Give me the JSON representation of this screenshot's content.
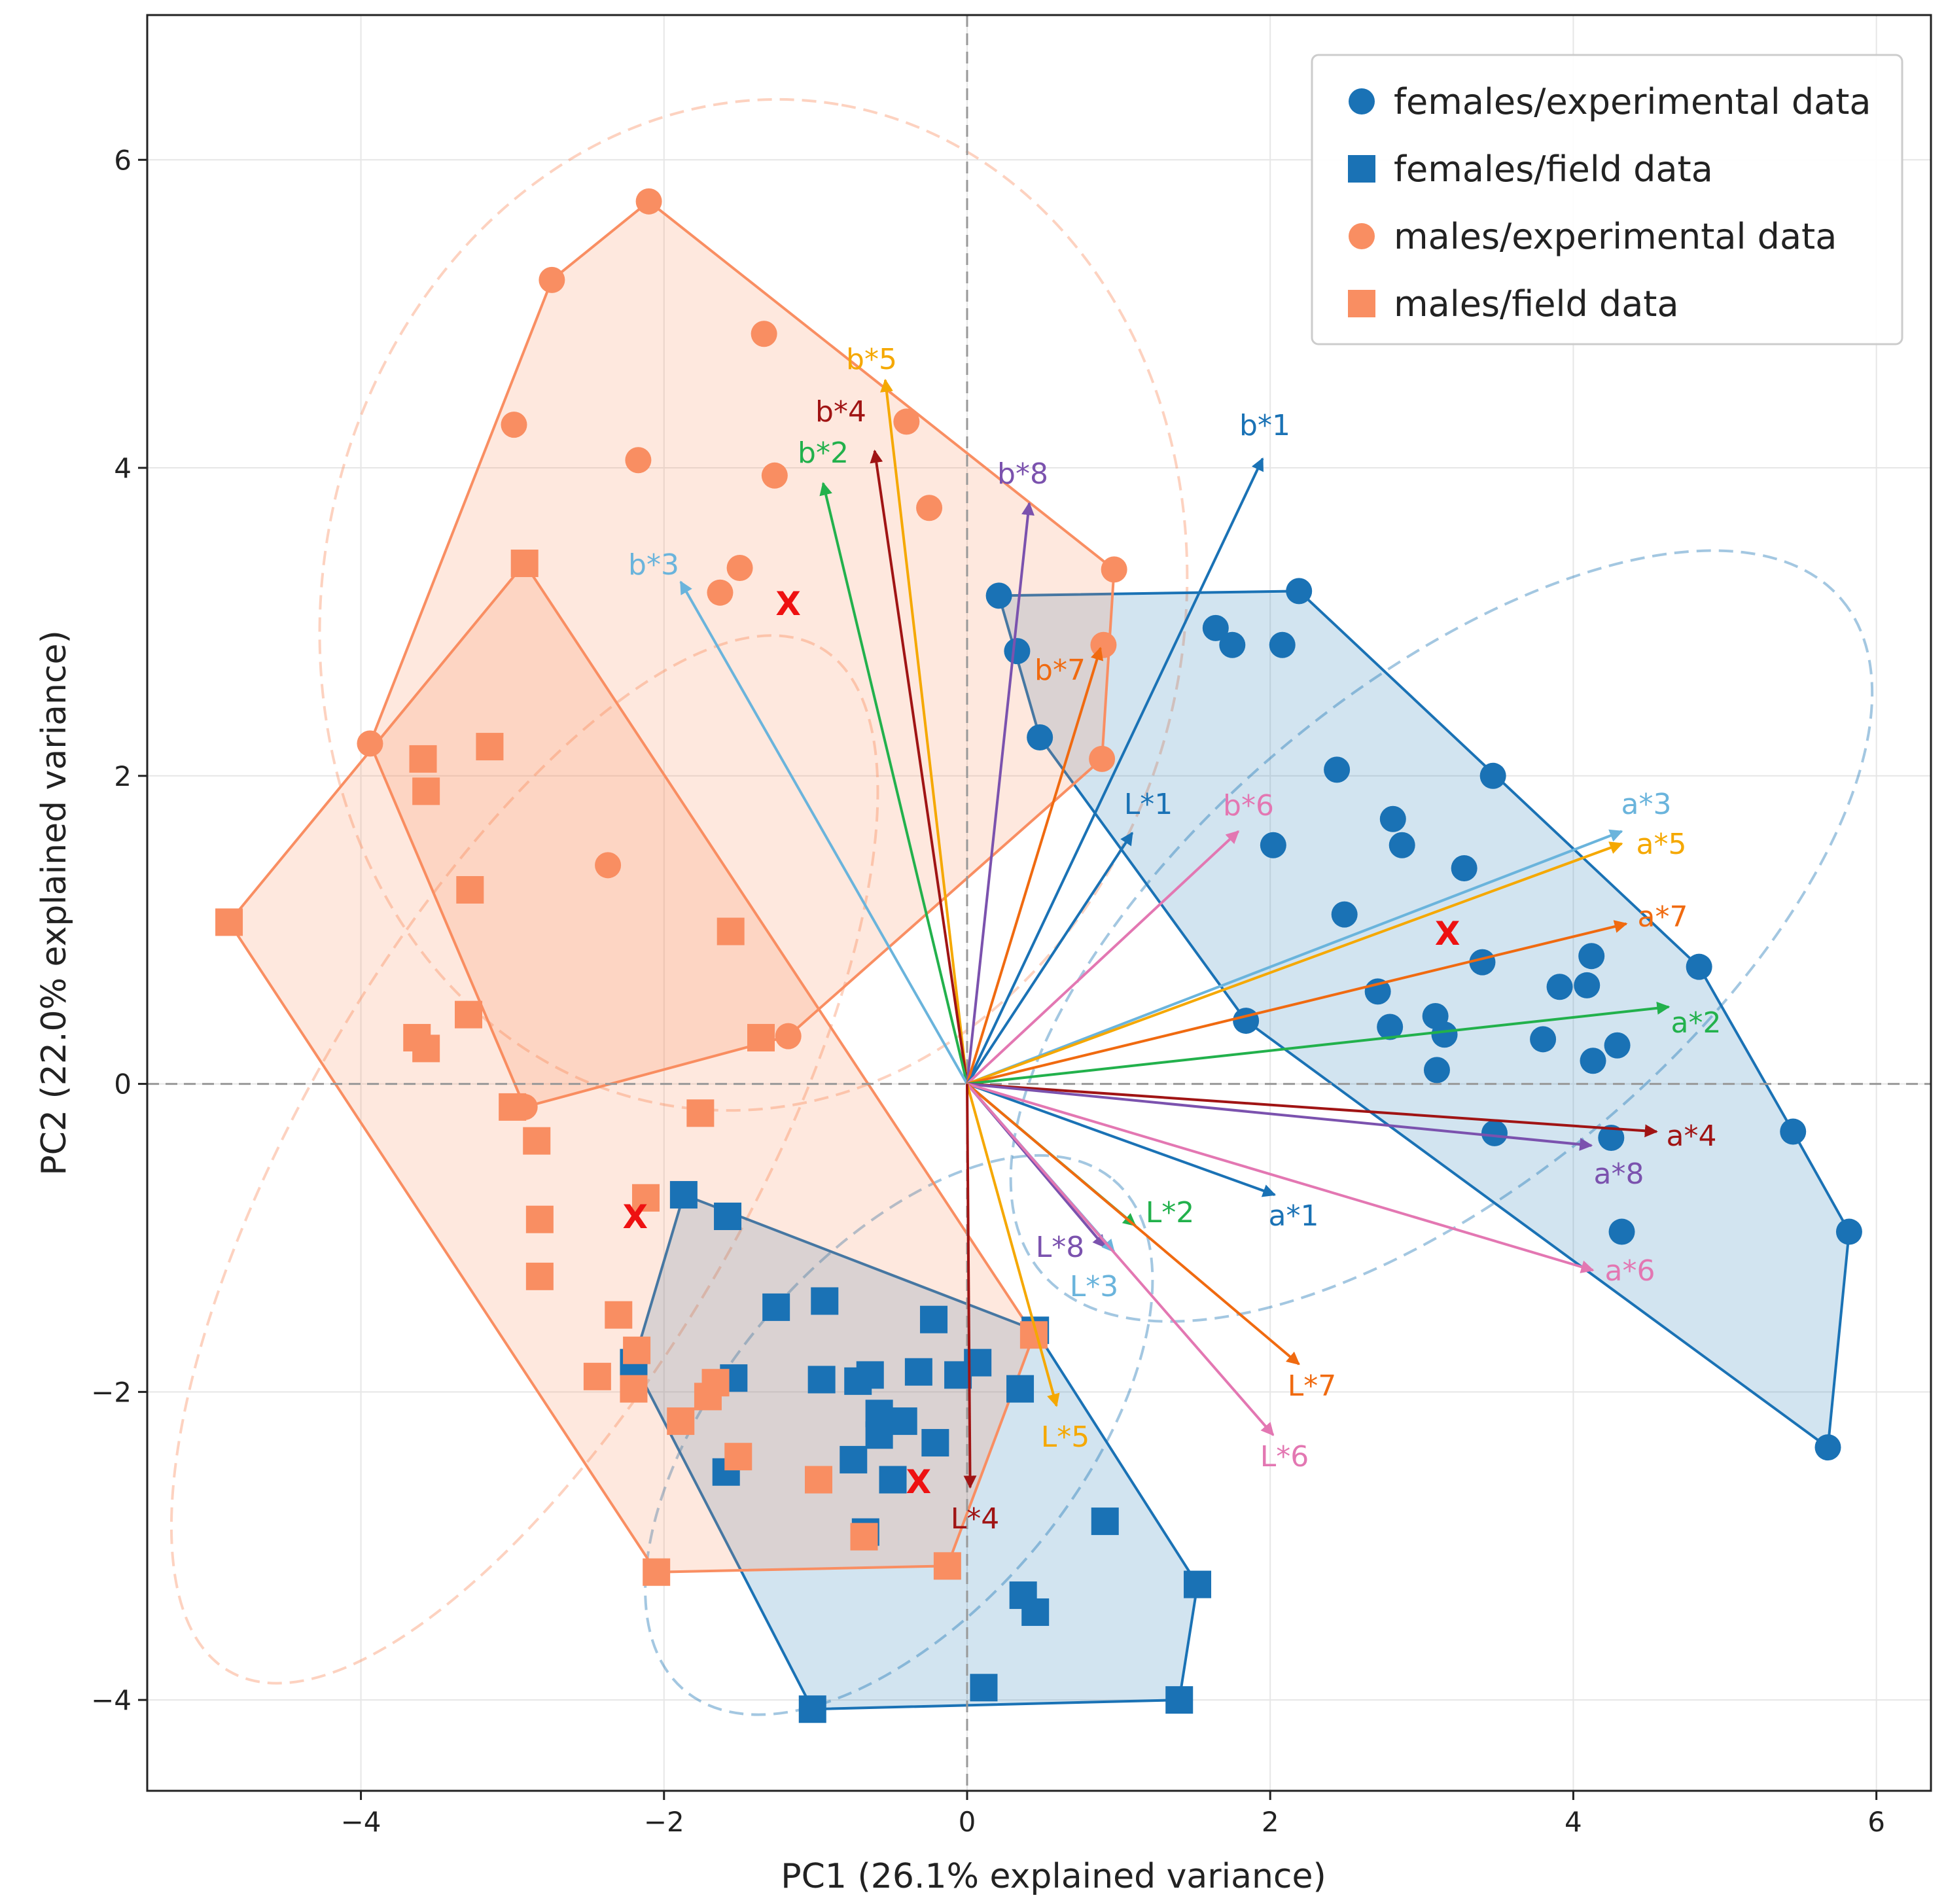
{
  "chart_data": {
    "type": "scatter",
    "xlabel": "PC1 (26.1% explained variance)",
    "ylabel": "PC2 (22.0% explained variance)",
    "xlim": [
      -5.41,
      6.36
    ],
    "ylim": [
      -4.59,
      6.94
    ],
    "xticks": [
      -4,
      -2,
      0,
      2,
      4,
      6
    ],
    "yticks": [
      -4,
      -2,
      0,
      2,
      4,
      6
    ],
    "xtick_labels": [
      "−4",
      "−2",
      "0",
      "2",
      "4",
      "6"
    ],
    "ytick_labels": [
      "−4",
      "−2",
      "0",
      "2",
      "4",
      "6"
    ],
    "grid": true,
    "legend_position": "top-right",
    "zero_lines": "dashed",
    "series": [
      {
        "name": "females/experimental data",
        "marker": "circle",
        "color": "#1a72b5",
        "hull_fill": "#1f77b4",
        "centroid": [
          3.17,
          0.98
        ],
        "ellipse": {
          "cx": 3.13,
          "cy": 0.96,
          "a": 3.45,
          "b": 1.6,
          "angle_deg": -40
        },
        "points": [
          [
            0.21,
            3.17
          ],
          [
            0.33,
            2.81
          ],
          [
            0.48,
            2.25
          ],
          [
            2.19,
            3.2
          ],
          [
            1.64,
            2.96
          ],
          [
            1.75,
            2.85
          ],
          [
            2.08,
            2.85
          ],
          [
            2.44,
            2.04
          ],
          [
            3.47,
            2.0
          ],
          [
            2.81,
            1.72
          ],
          [
            2.87,
            1.55
          ],
          [
            2.02,
            1.55
          ],
          [
            3.28,
            1.4
          ],
          [
            2.49,
            1.1
          ],
          [
            3.4,
            0.79
          ],
          [
            4.12,
            0.83
          ],
          [
            3.91,
            0.63
          ],
          [
            4.09,
            0.64
          ],
          [
            4.83,
            0.76
          ],
          [
            2.71,
            0.6
          ],
          [
            3.09,
            0.44
          ],
          [
            2.79,
            0.37
          ],
          [
            3.15,
            0.32
          ],
          [
            1.84,
            0.41
          ],
          [
            3.8,
            0.29
          ],
          [
            4.29,
            0.25
          ],
          [
            4.13,
            0.15
          ],
          [
            3.1,
            0.09
          ],
          [
            3.48,
            -0.32
          ],
          [
            4.25,
            -0.35
          ],
          [
            5.45,
            -0.31
          ],
          [
            5.82,
            -0.96
          ],
          [
            4.32,
            -0.96
          ],
          [
            5.68,
            -2.36
          ]
        ]
      },
      {
        "name": "females/field data",
        "marker": "square",
        "color": "#1a72b5",
        "hull_fill": "#1f77b4",
        "centroid": [
          -0.32,
          -2.58
        ],
        "ellipse": {
          "cx": -0.45,
          "cy": -2.28,
          "a": 2.2,
          "b": 1.15,
          "angle_deg": -50
        },
        "points": [
          [
            -1.87,
            -0.72
          ],
          [
            -1.58,
            -0.86
          ],
          [
            -2.2,
            -1.81
          ],
          [
            -1.26,
            -1.45
          ],
          [
            -0.94,
            -1.41
          ],
          [
            -0.22,
            -1.53
          ],
          [
            0.07,
            -1.81
          ],
          [
            -0.06,
            -1.89
          ],
          [
            -0.32,
            -1.87
          ],
          [
            -0.64,
            -1.89
          ],
          [
            -0.72,
            -1.93
          ],
          [
            -0.96,
            -1.92
          ],
          [
            -1.54,
            -1.91
          ],
          [
            0.35,
            -1.98
          ],
          [
            -0.58,
            -2.14
          ],
          [
            -0.42,
            -2.19
          ],
          [
            -0.58,
            -2.28
          ],
          [
            -0.21,
            -2.33
          ],
          [
            -0.75,
            -2.44
          ],
          [
            -0.49,
            -2.57
          ],
          [
            -1.59,
            -2.52
          ],
          [
            -0.67,
            -2.91
          ],
          [
            0.91,
            -2.84
          ],
          [
            1.52,
            -3.25
          ],
          [
            0.37,
            -3.32
          ],
          [
            0.45,
            -3.43
          ],
          [
            0.11,
            -3.92
          ],
          [
            1.4,
            -4.0
          ],
          [
            -1.02,
            -4.06
          ],
          [
            0.45,
            -1.6
          ]
        ]
      },
      {
        "name": "males/experimental data",
        "marker": "circle",
        "color": "#f98e62",
        "hull_fill": "#fa8a5c",
        "centroid": [
          -1.18,
          3.12
        ],
        "ellipse": {
          "cx": -1.41,
          "cy": 3.11,
          "a": 3.35,
          "b": 2.8,
          "angle_deg": -80
        },
        "points": [
          [
            -2.1,
            5.73
          ],
          [
            -2.74,
            5.22
          ],
          [
            -1.34,
            4.87
          ],
          [
            -2.99,
            4.28
          ],
          [
            -0.4,
            4.3
          ],
          [
            -2.17,
            4.05
          ],
          [
            -1.27,
            3.95
          ],
          [
            -0.25,
            3.74
          ],
          [
            -1.5,
            3.35
          ],
          [
            -1.63,
            3.19
          ],
          [
            0.97,
            3.34
          ],
          [
            0.9,
            2.85
          ],
          [
            0.89,
            2.11
          ],
          [
            -3.94,
            2.21
          ],
          [
            -2.37,
            1.42
          ],
          [
            -1.18,
            0.31
          ],
          [
            -2.92,
            -0.15
          ]
        ]
      },
      {
        "name": "males/field data",
        "marker": "square",
        "color": "#f98e62",
        "hull_fill": "#fa8a5c",
        "centroid": [
          -2.19,
          -0.86
        ],
        "ellipse": {
          "cx": -2.92,
          "cy": -0.49,
          "a": 3.9,
          "b": 1.45,
          "angle_deg": -60
        },
        "points": [
          [
            -2.92,
            3.38
          ],
          [
            -3.15,
            2.19
          ],
          [
            -3.59,
            2.11
          ],
          [
            -3.57,
            1.9
          ],
          [
            -3.28,
            1.26
          ],
          [
            -1.56,
            0.99
          ],
          [
            -3.29,
            0.45
          ],
          [
            -3.63,
            0.3
          ],
          [
            -3.57,
            0.23
          ],
          [
            -1.36,
            0.3
          ],
          [
            -4.87,
            1.05
          ],
          [
            -3.0,
            -0.15
          ],
          [
            -1.76,
            -0.19
          ],
          [
            -2.84,
            -0.37
          ],
          [
            -2.12,
            -0.74
          ],
          [
            -2.82,
            -0.88
          ],
          [
            -2.82,
            -1.25
          ],
          [
            -2.3,
            -1.5
          ],
          [
            -2.18,
            -1.73
          ],
          [
            -2.44,
            -1.9
          ],
          [
            -2.2,
            -1.98
          ],
          [
            -1.66,
            -1.94
          ],
          [
            -1.71,
            -2.03
          ],
          [
            -1.89,
            -2.19
          ],
          [
            -1.51,
            -2.42
          ],
          [
            -0.98,
            -2.57
          ],
          [
            -0.68,
            -2.94
          ],
          [
            -2.05,
            -3.17
          ],
          [
            -0.13,
            -3.13
          ],
          [
            0.44,
            -1.63
          ]
        ]
      }
    ],
    "centroid_marker": {
      "label": "X",
      "color": "#ee1111"
    },
    "loadings": [
      {
        "label": "b*1",
        "x": 1.95,
        "y": 4.06,
        "color": "#1a72b5"
      },
      {
        "label": "b*5",
        "x": -0.54,
        "y": 4.57,
        "color": "#f5a800"
      },
      {
        "label": "b*4",
        "x": -0.61,
        "y": 4.11,
        "color": "#a01414"
      },
      {
        "label": "b*2",
        "x": -0.95,
        "y": 3.9,
        "color": "#22b14c"
      },
      {
        "label": "b*8",
        "x": 0.41,
        "y": 3.77,
        "color": "#7b52ae"
      },
      {
        "label": "b*3",
        "x": -1.89,
        "y": 3.26,
        "color": "#6ab4dc"
      },
      {
        "label": "b*7",
        "x": 0.88,
        "y": 2.83,
        "color": "#f06a10"
      },
      {
        "label": "L*1",
        "x": 1.09,
        "y": 1.63,
        "color": "#1a72b5"
      },
      {
        "label": "b*6",
        "x": 1.79,
        "y": 1.64,
        "color": "#e377b2"
      },
      {
        "label": "a*3",
        "x": 4.32,
        "y": 1.64,
        "color": "#6ab4dc"
      },
      {
        "label": "a*5",
        "x": 4.32,
        "y": 1.56,
        "color": "#f5a800"
      },
      {
        "label": "a*7",
        "x": 4.35,
        "y": 1.04,
        "color": "#f06a10"
      },
      {
        "label": "a*2",
        "x": 4.63,
        "y": 0.5,
        "color": "#22b14c"
      },
      {
        "label": "a*4",
        "x": 4.55,
        "y": -0.31,
        "color": "#a01414"
      },
      {
        "label": "a*8",
        "x": 4.12,
        "y": -0.4,
        "color": "#7b52ae"
      },
      {
        "label": "a*1",
        "x": 2.03,
        "y": -0.72,
        "color": "#1a72b5"
      },
      {
        "label": "a*6",
        "x": 4.13,
        "y": -1.21,
        "color": "#e377b2"
      },
      {
        "label": "L*2",
        "x": 1.11,
        "y": -0.92,
        "color": "#22b14c"
      },
      {
        "label": "L*8",
        "x": 0.91,
        "y": -1.06,
        "color": "#7b52ae"
      },
      {
        "label": "L*3",
        "x": 0.97,
        "y": -1.09,
        "color": "#6ab4dc"
      },
      {
        "label": "L*7",
        "x": 2.19,
        "y": -1.82,
        "color": "#f06a10"
      },
      {
        "label": "L*6",
        "x": 2.02,
        "y": -2.28,
        "color": "#e377b2"
      },
      {
        "label": "L*5",
        "x": 0.59,
        "y": -2.09,
        "color": "#f5a800"
      },
      {
        "label": "L*4",
        "x": 0.02,
        "y": -2.62,
        "color": "#a01414"
      }
    ]
  }
}
